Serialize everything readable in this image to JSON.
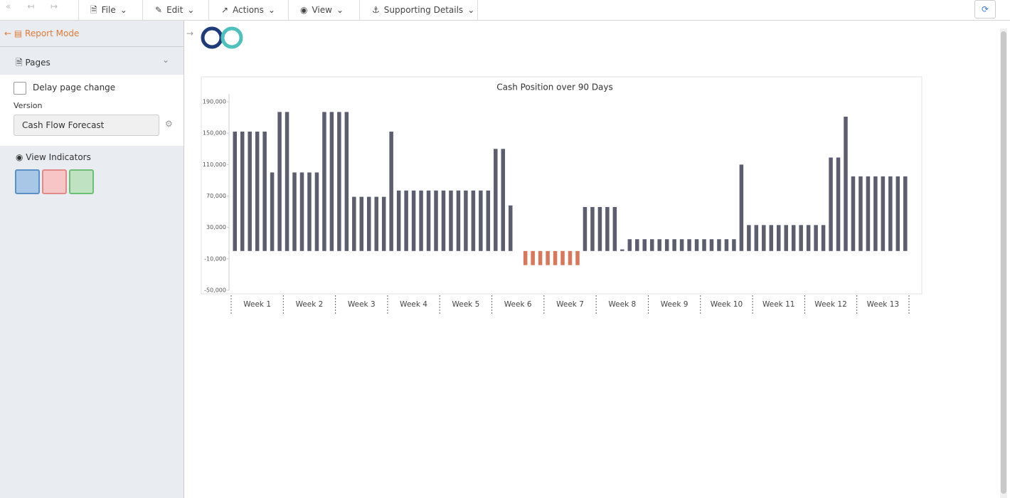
{
  "toolbar": {
    "menus": [
      "File",
      "Edit",
      "Actions",
      "View",
      "Supporting Details"
    ]
  },
  "sidebar": {
    "mode": "Report Mode",
    "pages": "Pages",
    "delay_checkbox": "Delay page change",
    "version_label": "Version",
    "version_value": "Cash Flow Forecast",
    "indicators": "View Indicators"
  },
  "chart_data": {
    "type": "bar",
    "title": "Cash Position over 90 Days",
    "groups": [
      "Week 1",
      "Week 2",
      "Week 3",
      "Week 4",
      "Week 5",
      "Week 6",
      "Week 7",
      "Week 8",
      "Week 9",
      "Week 10",
      "Week 11",
      "Week 12",
      "Week 13"
    ],
    "values": [
      152000,
      152000,
      152000,
      152000,
      152000,
      100000,
      177000,
      177000,
      100000,
      100000,
      100000,
      100000,
      177000,
      177000,
      177000,
      177000,
      69000,
      69000,
      69000,
      69000,
      69000,
      152000,
      77000,
      77000,
      77000,
      77000,
      77000,
      77000,
      77000,
      77000,
      77000,
      77000,
      77000,
      77000,
      77000,
      130000,
      130000,
      58000,
      0,
      -18000,
      -18000,
      -18000,
      -18000,
      -18000,
      -18000,
      -18000,
      -18000,
      56000,
      56000,
      56000,
      56000,
      56000,
      2000,
      15000,
      15000,
      15000,
      15000,
      15000,
      15000,
      15000,
      15000,
      15000,
      15000,
      15000,
      15000,
      15000,
      15000,
      15000,
      110000,
      33000,
      33000,
      33000,
      33000,
      33000,
      33000,
      33000,
      33000,
      33000,
      33000,
      33000,
      119000,
      119000,
      171000,
      95000,
      95000,
      95000,
      95000,
      95000,
      95000,
      95000,
      95000
    ],
    "color": "#5c5d6f",
    "negative_color": "#d8775b",
    "ylim": [
      -50000,
      200000
    ],
    "yticks": [
      {
        "value": -50000,
        "label": "-50,000"
      },
      {
        "value": -10000,
        "label": "-10,000"
      },
      {
        "value": 30000,
        "label": "30,000"
      },
      {
        "value": 70000,
        "label": "70,000"
      },
      {
        "value": 110000,
        "label": "110,000"
      },
      {
        "value": 150000,
        "label": "150,000"
      },
      {
        "value": 190000,
        "label": "190,000"
      }
    ]
  }
}
